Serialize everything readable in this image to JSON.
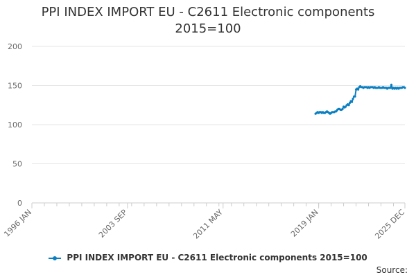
{
  "chart_data": {
    "type": "line",
    "title": "PPI INDEX IMPORT EU - C2611 Electronic components",
    "subtitle": "2015=100",
    "ylim": [
      0,
      200
    ],
    "yticks": [
      0,
      50,
      100,
      150,
      200
    ],
    "xticks": [
      "1996 JAN",
      "2003 SEP",
      "2011 MAY",
      "2019 JAN",
      "2025 DEC"
    ],
    "xlim": [
      "1996-01",
      "2025-12"
    ],
    "grid": true,
    "legend_position": "bottom",
    "series": [
      {
        "name": "PPI INDEX IMPORT EU - C2611 Electronic components 2015=100",
        "color": "#0b7fc1",
        "x": [
          "2018-10",
          "2018-11",
          "2018-12",
          "2019-01",
          "2019-02",
          "2019-03",
          "2019-04",
          "2019-05",
          "2019-06",
          "2019-07",
          "2019-08",
          "2019-09",
          "2019-10",
          "2019-11",
          "2019-12",
          "2020-01",
          "2020-02",
          "2020-03",
          "2020-04",
          "2020-05",
          "2020-06",
          "2020-07",
          "2020-08",
          "2020-09",
          "2020-10",
          "2020-11",
          "2020-12",
          "2021-01",
          "2021-02",
          "2021-03",
          "2021-04",
          "2021-05",
          "2021-06",
          "2021-07",
          "2021-08",
          "2021-09",
          "2021-10",
          "2021-11",
          "2021-12",
          "2022-01",
          "2022-02",
          "2022-03",
          "2022-04",
          "2022-05",
          "2022-06",
          "2022-07",
          "2022-08",
          "2022-09",
          "2022-10",
          "2022-11",
          "2022-12",
          "2023-01",
          "2023-02",
          "2023-03",
          "2023-04",
          "2023-05",
          "2023-06",
          "2023-07",
          "2023-08",
          "2023-09",
          "2023-10",
          "2023-11",
          "2023-12",
          "2024-01",
          "2024-02",
          "2024-03",
          "2024-04",
          "2024-05",
          "2024-06",
          "2024-07",
          "2024-08",
          "2024-09",
          "2024-10",
          "2024-11",
          "2024-12",
          "2025-01",
          "2025-02",
          "2025-03",
          "2025-04",
          "2025-05",
          "2025-06",
          "2025-07",
          "2025-08",
          "2025-09",
          "2025-10",
          "2025-11",
          "2025-12"
        ],
        "values": [
          114,
          115,
          116,
          115,
          116,
          116,
          115,
          116,
          115,
          115,
          116,
          117,
          116,
          115,
          114,
          115,
          116,
          116,
          116,
          117,
          117,
          119,
          120,
          120,
          119,
          119,
          120,
          123,
          122,
          123,
          125,
          126,
          125,
          128,
          130,
          129,
          133,
          136,
          136,
          145,
          146,
          145,
          148,
          149,
          148,
          148,
          147,
          148,
          148,
          148,
          147,
          148,
          147,
          148,
          148,
          148,
          147,
          148,
          147,
          147,
          147,
          148,
          147,
          147,
          147,
          148,
          147,
          147,
          147,
          146,
          147,
          147,
          147,
          151,
          146,
          147,
          146,
          147,
          146,
          147,
          146,
          147,
          147,
          147,
          148,
          148,
          147
        ]
      }
    ]
  },
  "legend": {
    "label": "PPI INDEX IMPORT EU - C2611 Electronic components 2015=100"
  },
  "source": {
    "label": "Source:"
  }
}
